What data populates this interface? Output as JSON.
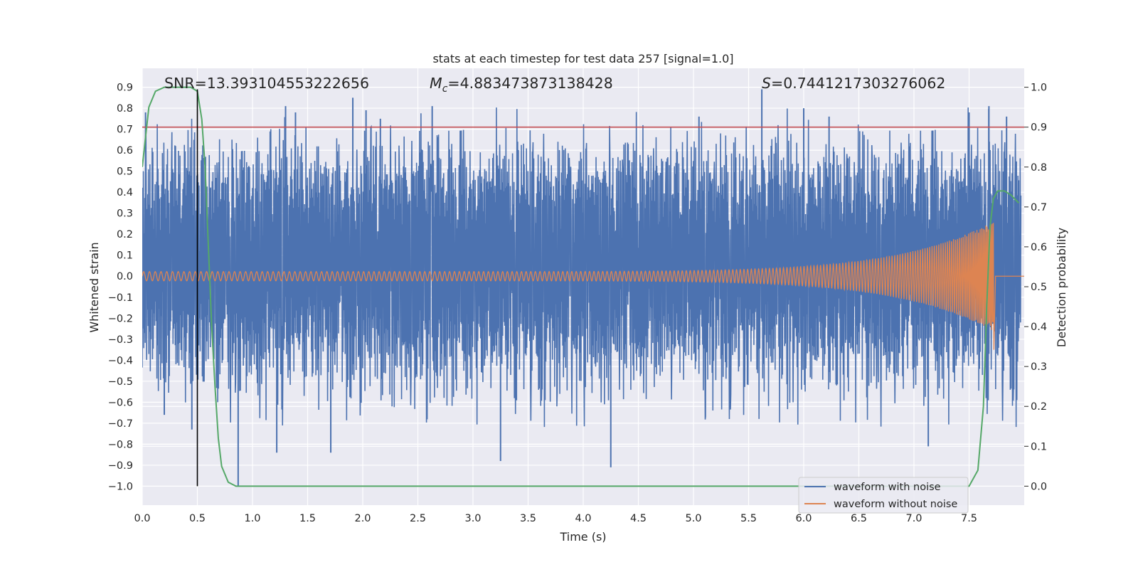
{
  "chart_data": {
    "type": "line",
    "title": "stats at each timestep for test data 257 [signal=1.0]",
    "xlabel": "Time (s)",
    "ylabel_left": "Whitened strain",
    "ylabel_right": "Detection probability",
    "xlim": [
      0.0,
      8.0
    ],
    "ylim_left": [
      -1.09,
      0.99
    ],
    "ylim_right": [
      -0.0475,
      1.0475
    ],
    "xticks": [
      "0.0",
      "0.5",
      "1.0",
      "1.5",
      "2.0",
      "2.5",
      "3.0",
      "3.5",
      "4.0",
      "4.5",
      "5.0",
      "5.5",
      "6.0",
      "6.5",
      "7.0",
      "7.5"
    ],
    "yticks_left": [
      "0.9",
      "0.8",
      "0.7",
      "0.6",
      "0.5",
      "0.4",
      "0.3",
      "0.2",
      "0.1",
      "0.0",
      "−0.1",
      "−0.2",
      "−0.3",
      "−0.4",
      "−0.5",
      "−0.6",
      "−0.7",
      "−0.8",
      "−0.9",
      "−1.0"
    ],
    "yticks_right": [
      "1.0",
      "0.9",
      "0.8",
      "0.7",
      "0.6",
      "0.5",
      "0.4",
      "0.3",
      "0.2",
      "0.1",
      "0.0"
    ],
    "grid": true,
    "legend_position": "lower-right",
    "annotations": {
      "snr": "SNR=13.393104553222656",
      "mc_symbol": "M",
      "mc_sub": "c",
      "mc_value": "=4.883473873138428",
      "s_symbol": "S",
      "s_value": "=0.7441217303276062"
    },
    "threshold_line": {
      "y_right": 0.9,
      "color": "#c44e52"
    },
    "marker_line": {
      "x": 0.5,
      "y_from": -1.0,
      "y_to": 0.89,
      "color": "#000000"
    },
    "series": [
      {
        "name": "waveform with noise",
        "axis": "left",
        "color": "#4c72b0",
        "kind": "noise band",
        "x_range": [
          0.0,
          7.97
        ],
        "typical_envelope": [
          -0.43,
          0.55
        ],
        "spike_peaks": [
          {
            "x": 0.03,
            "y": 0.78
          },
          {
            "x": 0.2,
            "y": -0.66
          },
          {
            "x": 0.45,
            "y": -0.73
          },
          {
            "x": 0.87,
            "y": -1.0
          },
          {
            "x": 1.22,
            "y": -0.84
          },
          {
            "x": 1.3,
            "y": 0.81
          },
          {
            "x": 1.39,
            "y": 0.78
          },
          {
            "x": 1.71,
            "y": -0.84
          },
          {
            "x": 1.91,
            "y": 0.85
          },
          {
            "x": 2.03,
            "y": 0.79
          },
          {
            "x": 2.16,
            "y": 0.75
          },
          {
            "x": 2.63,
            "y": 0.81
          },
          {
            "x": 3.25,
            "y": -0.88
          },
          {
            "x": 4.25,
            "y": -0.91
          },
          {
            "x": 5.05,
            "y": 0.76
          },
          {
            "x": 5.62,
            "y": 0.89
          },
          {
            "x": 6.0,
            "y": 0.8
          },
          {
            "x": 6.23,
            "y": 0.76
          },
          {
            "x": 7.13,
            "y": -0.81
          },
          {
            "x": 7.5,
            "y": 0.78
          },
          {
            "x": 7.68,
            "y": 0.81
          },
          {
            "x": 7.84,
            "y": 0.76
          }
        ]
      },
      {
        "name": "waveform without noise",
        "axis": "left",
        "color": "#dd8452",
        "kind": "chirp",
        "amplitude_start": 0.022,
        "amplitude_peak": 0.26,
        "merger_x": 7.72,
        "minimum": -0.35
      },
      {
        "name": "Detection probability",
        "axis": "right",
        "color": "#55a868",
        "x": [
          0.0,
          0.06,
          0.12,
          0.2,
          0.28,
          0.36,
          0.44,
          0.5,
          0.54,
          0.57,
          0.6,
          0.63,
          0.66,
          0.69,
          0.72,
          0.78,
          0.85,
          0.95,
          1.5,
          3.0,
          4.5,
          6.0,
          7.0,
          7.5,
          7.58,
          7.63,
          7.66,
          7.69,
          7.72,
          7.76,
          7.82,
          7.88,
          7.95
        ],
        "y": [
          0.8,
          0.95,
          0.99,
          1.0,
          1.0,
          1.0,
          1.0,
          0.99,
          0.92,
          0.8,
          0.6,
          0.4,
          0.25,
          0.12,
          0.05,
          0.01,
          0.0,
          0.0,
          0.0,
          0.0,
          0.0,
          0.0,
          0.0,
          0.0,
          0.04,
          0.2,
          0.45,
          0.65,
          0.72,
          0.74,
          0.74,
          0.73,
          0.71
        ]
      }
    ]
  }
}
